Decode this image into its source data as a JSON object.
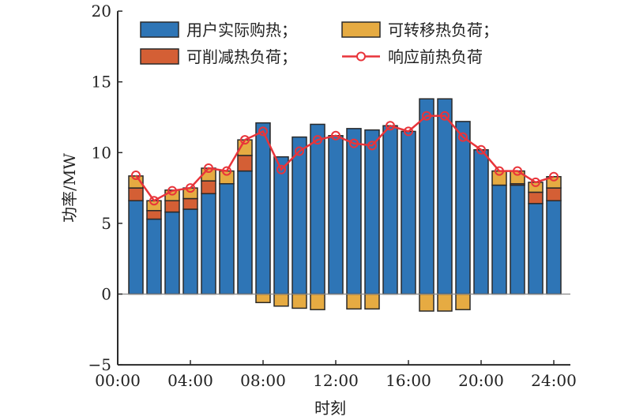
{
  "chart_data": {
    "type": "bar",
    "xlabel": "时刻",
    "ylabel": "功率/MW",
    "ylim": [
      -5,
      20
    ],
    "yticks": [
      -5,
      0,
      5,
      10,
      15,
      20
    ],
    "ytick_labels": [
      "−5",
      "0",
      "5",
      "10",
      "15",
      "20"
    ],
    "xlim": [
      0,
      24
    ],
    "xticks": [
      0,
      4,
      8,
      12,
      16,
      20,
      24
    ],
    "xtick_labels": [
      "00:00",
      "04:00",
      "08:00",
      "12:00",
      "16:00",
      "20:00",
      "24:00"
    ],
    "legend_position": "top",
    "hours": [
      1,
      2,
      3,
      4,
      5,
      6,
      7,
      8,
      9,
      10,
      11,
      12,
      13,
      14,
      15,
      16,
      17,
      18,
      19,
      20,
      21,
      22,
      23,
      24
    ],
    "series": [
      {
        "name": "用户实际购热；",
        "kind": "bar",
        "color": "#2e75b6",
        "values": [
          6.6,
          5.3,
          5.8,
          6.0,
          7.1,
          7.8,
          8.7,
          12.1,
          9.7,
          11.1,
          12.0,
          11.2,
          11.7,
          11.6,
          11.9,
          11.5,
          13.8,
          13.8,
          12.2,
          10.2,
          7.7,
          7.7,
          6.4,
          6.6
        ]
      },
      {
        "name": "可削减热负荷；",
        "kind": "bar",
        "color": "#d45f35",
        "values": [
          0.9,
          0.6,
          0.8,
          0.75,
          0.9,
          0,
          1.1,
          0,
          0,
          0,
          0,
          0,
          0,
          0,
          0,
          0,
          0,
          0,
          0,
          0,
          0,
          0.1,
          0.8,
          0.9
        ]
      },
      {
        "name": "可转移热负荷；",
        "kind": "bar",
        "color": "#e6ab42",
        "values": [
          0.85,
          0.7,
          0.75,
          0.75,
          0.9,
          0.9,
          1.1,
          -0.6,
          -0.85,
          -1.0,
          -1.1,
          0,
          -1.05,
          -1.05,
          0,
          0,
          -1.2,
          -1.2,
          -1.1,
          0,
          1.0,
          0.9,
          0.7,
          0.8
        ]
      },
      {
        "name": "响应前热负荷",
        "kind": "line",
        "color": "#e8343a",
        "values": [
          8.4,
          6.6,
          7.3,
          7.5,
          8.9,
          8.7,
          10.9,
          11.5,
          8.8,
          10.1,
          10.9,
          11.2,
          10.65,
          10.5,
          11.9,
          11.5,
          12.6,
          12.6,
          11.1,
          10.2,
          8.7,
          8.7,
          7.9,
          8.3
        ]
      }
    ]
  }
}
